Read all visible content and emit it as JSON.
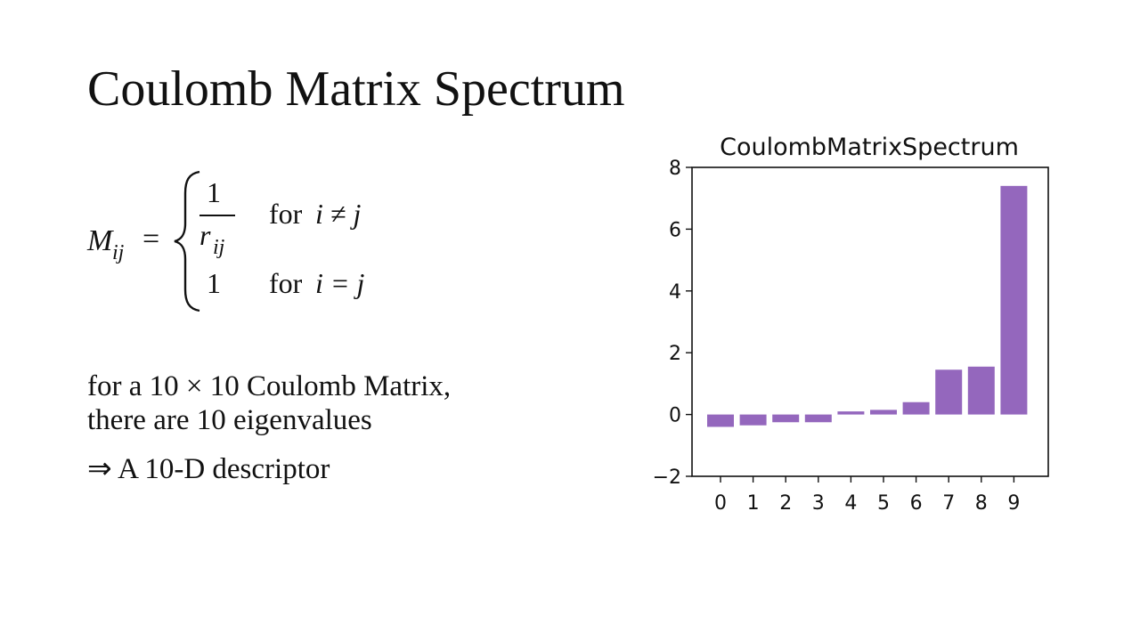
{
  "slide": {
    "title": "Coulomb Matrix Spectrum",
    "formula": {
      "lhs_main": "M",
      "lhs_sub": "ij",
      "equals": "=",
      "frac_num": "1",
      "frac_den_main": "r",
      "frac_den_sub": "ij",
      "case1_word": "for",
      "case1_cond": "i ≠ j",
      "case2_value": "1",
      "case2_word": "for",
      "case2_cond": "i = j"
    },
    "text_line_1": "for a 10 × 10 Coulomb Matrix,",
    "text_line_2": "there are 10 eigenvalues",
    "text_line_3": "⇒ A 10-D descriptor"
  },
  "chart_data": {
    "type": "bar",
    "title": "CoulombMatrixSpectrum",
    "xlabel": "",
    "ylabel": "",
    "categories": [
      "0",
      "1",
      "2",
      "3",
      "4",
      "5",
      "6",
      "7",
      "8",
      "9"
    ],
    "values": [
      -0.4,
      -0.35,
      -0.25,
      -0.25,
      0.1,
      0.15,
      0.4,
      1.45,
      1.55,
      7.4
    ],
    "yticks": [
      "−2",
      "0",
      "2",
      "4",
      "6",
      "8"
    ],
    "ylim": [
      -2,
      8
    ],
    "grid": false,
    "bar_color": "#9467bd"
  }
}
